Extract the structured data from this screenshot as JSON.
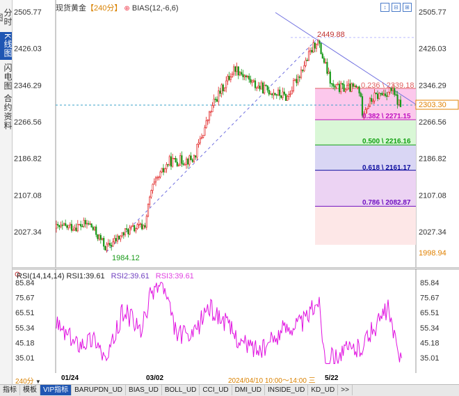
{
  "left_tabs": [
    {
      "label": "分时图",
      "active": false
    },
    {
      "label": "K线图",
      "active": true
    },
    {
      "label": "闪电图",
      "active": false
    },
    {
      "label": "合约资料",
      "active": false
    }
  ],
  "header": {
    "symbol": "现货黄金",
    "period": "【240分】",
    "add_icon": "circle-plus-icon",
    "indicator": "BIAS(12,-6,6)"
  },
  "window_buttons": [
    "↕",
    "⊟",
    "⊞"
  ],
  "price_axis": {
    "ticks": [
      "2505.77",
      "2426.03",
      "2346.29",
      "2266.56",
      "2186.82",
      "2107.08",
      "2027.34"
    ],
    "current_price": "2303.30",
    "low_marker": "1998.94"
  },
  "annotations": {
    "high_label": "2449.88",
    "low_label": "1984.12"
  },
  "fibonacci": {
    "levels": [
      {
        "label": "0.236 \\ 2339.18",
        "color": "#e06060"
      },
      {
        "label": "0.382 \\ 2271.15",
        "color": "#c010c0"
      },
      {
        "label": "0.500 \\ 2216.16",
        "color": "#10a010"
      },
      {
        "label": "0.618 \\ 2161.17",
        "color": "#1010a0"
      },
      {
        "label": "0.786 \\ 2082.87",
        "color": "#7010c0"
      }
    ]
  },
  "rsi": {
    "header_name": "RSI(14,14,14)",
    "rsi1": "RSI1:39.61",
    "rsi2": "RSI2:39.61",
    "rsi3": "RSI3:39.61",
    "ticks": [
      "85.84",
      "75.67",
      "65.51",
      "55.34",
      "45.18",
      "35.01"
    ]
  },
  "time_axis": {
    "labels": [
      "01/24",
      "03/02",
      "2024/04/10 10:00～14:00 三",
      "5/22"
    ]
  },
  "bottom": {
    "period_badge": "240分",
    "tabs": [
      "指标",
      "模板",
      "VIP指标",
      "BARUPDN_UD",
      "BIAS_UD",
      "BOLL_UD",
      "CCI_UD",
      "DMI_UD",
      "INSIDE_UD",
      "KD_UD",
      ">>"
    ],
    "active_tab": "VIP指标"
  },
  "colors": {
    "up": "#e02020",
    "down": "#1a9a1a",
    "rsi_line": "#e010e0",
    "accent": "#1f56b3",
    "trend": "#6060e0"
  }
}
